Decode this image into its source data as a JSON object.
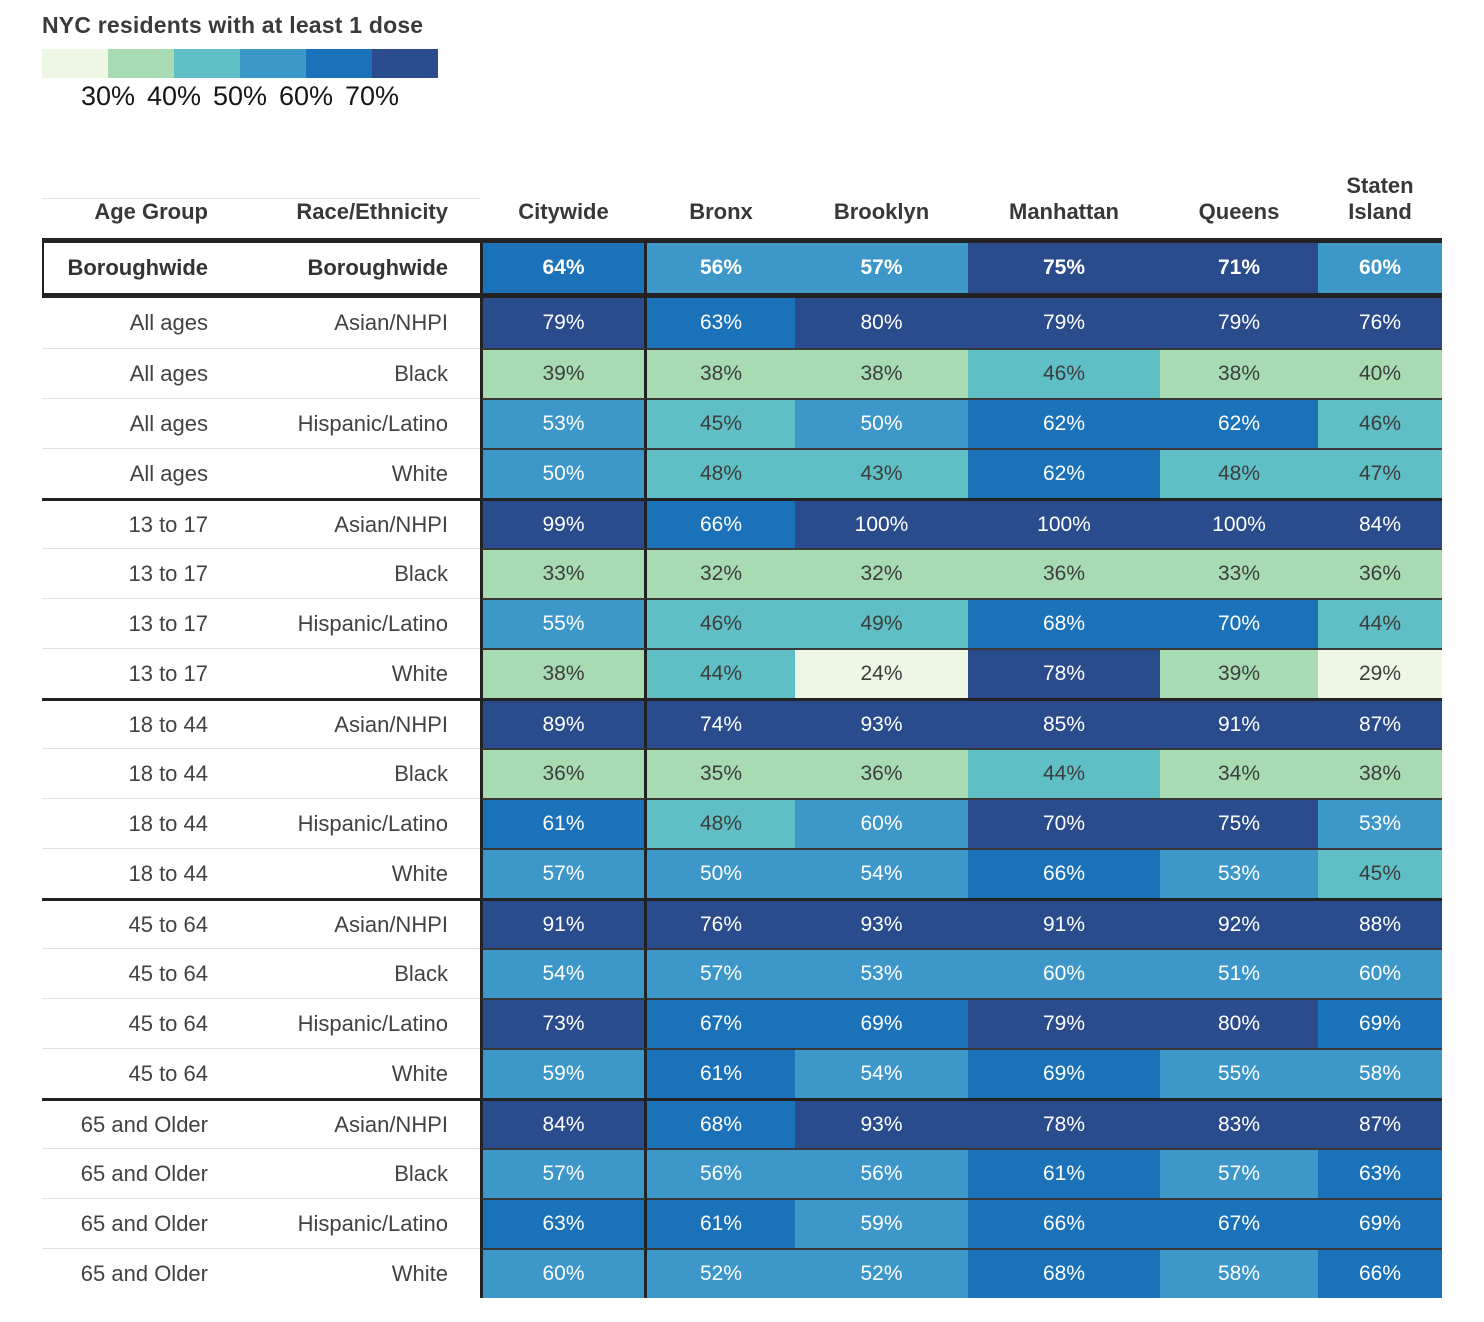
{
  "chart_data": {
    "type": "heatmap",
    "title": "NYC residents with at least 1 dose",
    "legend": {
      "tick_labels": [
        "30%",
        "40%",
        "50%",
        "60%",
        "70%"
      ],
      "bin_colors": [
        "#edf7e3",
        "#a8dbb2",
        "#60bfc4",
        "#3e97c9",
        "#1b72b8",
        "#2a4b8c"
      ],
      "bin_ranges": [
        "under 30%",
        "30-40%",
        "40-50%",
        "50-60%",
        "60-70%",
        "70% and over"
      ]
    },
    "row_header_columns": [
      "Age Group",
      "Race/Ethnicity"
    ],
    "columns": [
      "Citywide",
      "Bronx",
      "Brooklyn",
      "Manhattan",
      "Queens",
      "Staten Island"
    ],
    "unit": "%",
    "rows": [
      {
        "age": "Boroughwide",
        "race": "Boroughwide",
        "values": [
          64,
          56,
          57,
          75,
          71,
          60
        ],
        "bins": [
          4,
          3,
          3,
          5,
          5,
          3
        ],
        "emphasis": true
      },
      {
        "age": "All ages",
        "race": "Asian/NHPI",
        "values": [
          79,
          63,
          80,
          79,
          79,
          76
        ],
        "bins": [
          5,
          4,
          5,
          5,
          5,
          5
        ]
      },
      {
        "age": "All ages",
        "race": "Black",
        "values": [
          39,
          38,
          38,
          46,
          38,
          40
        ],
        "bins": [
          1,
          1,
          1,
          2,
          1,
          1
        ]
      },
      {
        "age": "All ages",
        "race": "Hispanic/Latino",
        "values": [
          53,
          45,
          50,
          62,
          62,
          46
        ],
        "bins": [
          3,
          2,
          3,
          4,
          4,
          2
        ]
      },
      {
        "age": "All ages",
        "race": "White",
        "values": [
          50,
          48,
          43,
          62,
          48,
          47
        ],
        "bins": [
          3,
          2,
          2,
          4,
          2,
          2
        ]
      },
      {
        "age": "13 to 17",
        "race": "Asian/NHPI",
        "values": [
          99,
          66,
          100,
          100,
          100,
          84
        ],
        "bins": [
          5,
          4,
          5,
          5,
          5,
          5
        ],
        "group_start": true
      },
      {
        "age": "13 to 17",
        "race": "Black",
        "values": [
          33,
          32,
          32,
          36,
          33,
          36
        ],
        "bins": [
          1,
          1,
          1,
          1,
          1,
          1
        ]
      },
      {
        "age": "13 to 17",
        "race": "Hispanic/Latino",
        "values": [
          55,
          46,
          49,
          68,
          70,
          44
        ],
        "bins": [
          3,
          2,
          2,
          4,
          4,
          2
        ]
      },
      {
        "age": "13 to 17",
        "race": "White",
        "values": [
          38,
          44,
          24,
          78,
          39,
          29
        ],
        "bins": [
          1,
          2,
          0,
          5,
          1,
          0
        ]
      },
      {
        "age": "18 to 44",
        "race": "Asian/NHPI",
        "values": [
          89,
          74,
          93,
          85,
          91,
          87
        ],
        "bins": [
          5,
          5,
          5,
          5,
          5,
          5
        ],
        "group_start": true
      },
      {
        "age": "18 to 44",
        "race": "Black",
        "values": [
          36,
          35,
          36,
          44,
          34,
          38
        ],
        "bins": [
          1,
          1,
          1,
          2,
          1,
          1
        ]
      },
      {
        "age": "18 to 44",
        "race": "Hispanic/Latino",
        "values": [
          61,
          48,
          60,
          70,
          75,
          53
        ],
        "bins": [
          4,
          2,
          3,
          5,
          5,
          3
        ]
      },
      {
        "age": "18 to 44",
        "race": "White",
        "values": [
          57,
          50,
          54,
          66,
          53,
          45
        ],
        "bins": [
          3,
          3,
          3,
          4,
          3,
          2
        ]
      },
      {
        "age": "45 to 64",
        "race": "Asian/NHPI",
        "values": [
          91,
          76,
          93,
          91,
          92,
          88
        ],
        "bins": [
          5,
          5,
          5,
          5,
          5,
          5
        ],
        "group_start": true
      },
      {
        "age": "45 to 64",
        "race": "Black",
        "values": [
          54,
          57,
          53,
          60,
          51,
          60
        ],
        "bins": [
          3,
          3,
          3,
          3,
          3,
          3
        ]
      },
      {
        "age": "45 to 64",
        "race": "Hispanic/Latino",
        "values": [
          73,
          67,
          69,
          79,
          80,
          69
        ],
        "bins": [
          5,
          4,
          4,
          5,
          5,
          4
        ]
      },
      {
        "age": "45 to 64",
        "race": "White",
        "values": [
          59,
          61,
          54,
          69,
          55,
          58
        ],
        "bins": [
          3,
          4,
          3,
          4,
          3,
          3
        ]
      },
      {
        "age": "65 and Older",
        "race": "Asian/NHPI",
        "values": [
          84,
          68,
          93,
          78,
          83,
          87
        ],
        "bins": [
          5,
          4,
          5,
          5,
          5,
          5
        ],
        "group_start": true
      },
      {
        "age": "65 and Older",
        "race": "Black",
        "values": [
          57,
          56,
          56,
          61,
          57,
          63
        ],
        "bins": [
          3,
          3,
          3,
          4,
          3,
          4
        ]
      },
      {
        "age": "65 and Older",
        "race": "Hispanic/Latino",
        "values": [
          63,
          61,
          59,
          66,
          67,
          69
        ],
        "bins": [
          4,
          4,
          3,
          4,
          4,
          4
        ]
      },
      {
        "age": "65 and Older",
        "race": "White",
        "values": [
          60,
          52,
          52,
          68,
          58,
          66
        ],
        "bins": [
          3,
          3,
          3,
          4,
          3,
          4
        ]
      }
    ]
  }
}
